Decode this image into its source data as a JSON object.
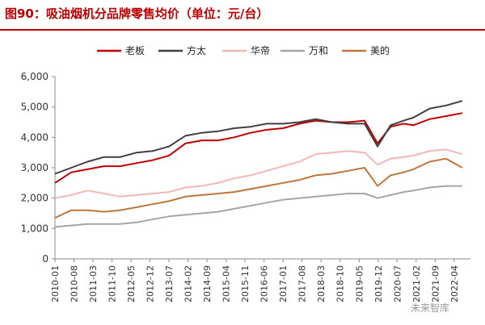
{
  "title": "图90：吸油烟机分品牌零售均价（单位：元/台）",
  "watermark": "未来智库",
  "chart_data": {
    "type": "line",
    "title": "图90：吸油烟机分品牌零售均价（单位：元/台）",
    "ylim": [
      0,
      6000
    ],
    "yticks": [
      0,
      1000,
      2000,
      3000,
      4000,
      5000,
      6000
    ],
    "ytick_labels": [
      "0",
      "1,000",
      "2,000",
      "3,000",
      "4,000",
      "5,000",
      "6,000"
    ],
    "xticks": [
      "2010-01",
      "2010-08",
      "2011-03",
      "2011-10",
      "2012-05",
      "2012-12",
      "2013-07",
      "2014-02",
      "2014-09",
      "2015-04",
      "2015-11",
      "2016-06",
      "2017-01",
      "2017-08",
      "2018-03",
      "2018-10",
      "2019-05",
      "2019-12",
      "2020-07",
      "2021-02",
      "2021-09",
      "2022-04"
    ],
    "legend_position": "top",
    "grid": false,
    "series": [
      {
        "name": "老板",
        "color": "#c00000",
        "values": [
          [
            2010.0,
            2500
          ],
          [
            2010.5,
            2850
          ],
          [
            2011.0,
            2950
          ],
          [
            2011.5,
            3050
          ],
          [
            2012.0,
            3050
          ],
          [
            2012.5,
            3150
          ],
          [
            2013.0,
            3250
          ],
          [
            2013.5,
            3400
          ],
          [
            2014.0,
            3800
          ],
          [
            2014.5,
            3900
          ],
          [
            2015.0,
            3900
          ],
          [
            2015.5,
            4000
          ],
          [
            2016.0,
            4150
          ],
          [
            2016.5,
            4250
          ],
          [
            2017.0,
            4300
          ],
          [
            2017.5,
            4450
          ],
          [
            2018.0,
            4550
          ],
          [
            2018.5,
            4500
          ],
          [
            2019.0,
            4500
          ],
          [
            2019.5,
            4550
          ],
          [
            2019.9,
            3800
          ],
          [
            2020.3,
            4350
          ],
          [
            2020.7,
            4450
          ],
          [
            2021.0,
            4400
          ],
          [
            2021.5,
            4600
          ],
          [
            2022.0,
            4700
          ],
          [
            2022.5,
            4800
          ]
        ]
      },
      {
        "name": "方太",
        "color": "#404040",
        "values": [
          [
            2010.0,
            2800
          ],
          [
            2010.5,
            3000
          ],
          [
            2011.0,
            3200
          ],
          [
            2011.5,
            3350
          ],
          [
            2012.0,
            3350
          ],
          [
            2012.5,
            3500
          ],
          [
            2013.0,
            3550
          ],
          [
            2013.5,
            3700
          ],
          [
            2014.0,
            4050
          ],
          [
            2014.5,
            4150
          ],
          [
            2015.0,
            4200
          ],
          [
            2015.5,
            4300
          ],
          [
            2016.0,
            4350
          ],
          [
            2016.5,
            4450
          ],
          [
            2017.0,
            4450
          ],
          [
            2017.5,
            4500
          ],
          [
            2018.0,
            4600
          ],
          [
            2018.5,
            4500
          ],
          [
            2019.0,
            4450
          ],
          [
            2019.5,
            4450
          ],
          [
            2019.9,
            3700
          ],
          [
            2020.3,
            4400
          ],
          [
            2020.7,
            4550
          ],
          [
            2021.0,
            4650
          ],
          [
            2021.5,
            4950
          ],
          [
            2022.0,
            5050
          ],
          [
            2022.5,
            5200
          ]
        ]
      },
      {
        "name": "华帝",
        "color": "#f2b8b8",
        "values": [
          [
            2010.0,
            2000
          ],
          [
            2010.5,
            2100
          ],
          [
            2011.0,
            2250
          ],
          [
            2011.5,
            2150
          ],
          [
            2012.0,
            2050
          ],
          [
            2012.5,
            2100
          ],
          [
            2013.0,
            2150
          ],
          [
            2013.5,
            2200
          ],
          [
            2014.0,
            2350
          ],
          [
            2014.5,
            2400
          ],
          [
            2015.0,
            2500
          ],
          [
            2015.5,
            2650
          ],
          [
            2016.0,
            2750
          ],
          [
            2016.5,
            2900
          ],
          [
            2017.0,
            3050
          ],
          [
            2017.5,
            3200
          ],
          [
            2018.0,
            3450
          ],
          [
            2018.5,
            3500
          ],
          [
            2019.0,
            3550
          ],
          [
            2019.5,
            3500
          ],
          [
            2019.9,
            3100
          ],
          [
            2020.3,
            3300
          ],
          [
            2020.7,
            3350
          ],
          [
            2021.0,
            3400
          ],
          [
            2021.5,
            3550
          ],
          [
            2022.0,
            3600
          ],
          [
            2022.5,
            3450
          ]
        ]
      },
      {
        "name": "万和",
        "color": "#a6a6a6",
        "values": [
          [
            2010.0,
            1050
          ],
          [
            2010.5,
            1100
          ],
          [
            2011.0,
            1150
          ],
          [
            2011.5,
            1150
          ],
          [
            2012.0,
            1150
          ],
          [
            2012.5,
            1200
          ],
          [
            2013.0,
            1300
          ],
          [
            2013.5,
            1400
          ],
          [
            2014.0,
            1450
          ],
          [
            2014.5,
            1500
          ],
          [
            2015.0,
            1550
          ],
          [
            2015.5,
            1650
          ],
          [
            2016.0,
            1750
          ],
          [
            2016.5,
            1850
          ],
          [
            2017.0,
            1950
          ],
          [
            2017.5,
            2000
          ],
          [
            2018.0,
            2050
          ],
          [
            2018.5,
            2100
          ],
          [
            2019.0,
            2150
          ],
          [
            2019.5,
            2150
          ],
          [
            2019.9,
            2000
          ],
          [
            2020.3,
            2100
          ],
          [
            2020.7,
            2200
          ],
          [
            2021.0,
            2250
          ],
          [
            2021.5,
            2350
          ],
          [
            2022.0,
            2400
          ],
          [
            2022.5,
            2400
          ]
        ]
      },
      {
        "name": "美的",
        "color": "#c0763a",
        "values": [
          [
            2010.0,
            1350
          ],
          [
            2010.5,
            1600
          ],
          [
            2011.0,
            1600
          ],
          [
            2011.5,
            1550
          ],
          [
            2012.0,
            1600
          ],
          [
            2012.5,
            1700
          ],
          [
            2013.0,
            1800
          ],
          [
            2013.5,
            1900
          ],
          [
            2014.0,
            2050
          ],
          [
            2014.5,
            2100
          ],
          [
            2015.0,
            2150
          ],
          [
            2015.5,
            2200
          ],
          [
            2016.0,
            2300
          ],
          [
            2016.5,
            2400
          ],
          [
            2017.0,
            2500
          ],
          [
            2017.5,
            2600
          ],
          [
            2018.0,
            2750
          ],
          [
            2018.5,
            2800
          ],
          [
            2019.0,
            2900
          ],
          [
            2019.5,
            3000
          ],
          [
            2019.9,
            2400
          ],
          [
            2020.3,
            2750
          ],
          [
            2020.7,
            2850
          ],
          [
            2021.0,
            2950
          ],
          [
            2021.5,
            3200
          ],
          [
            2022.0,
            3300
          ],
          [
            2022.5,
            3000
          ]
        ]
      }
    ]
  }
}
